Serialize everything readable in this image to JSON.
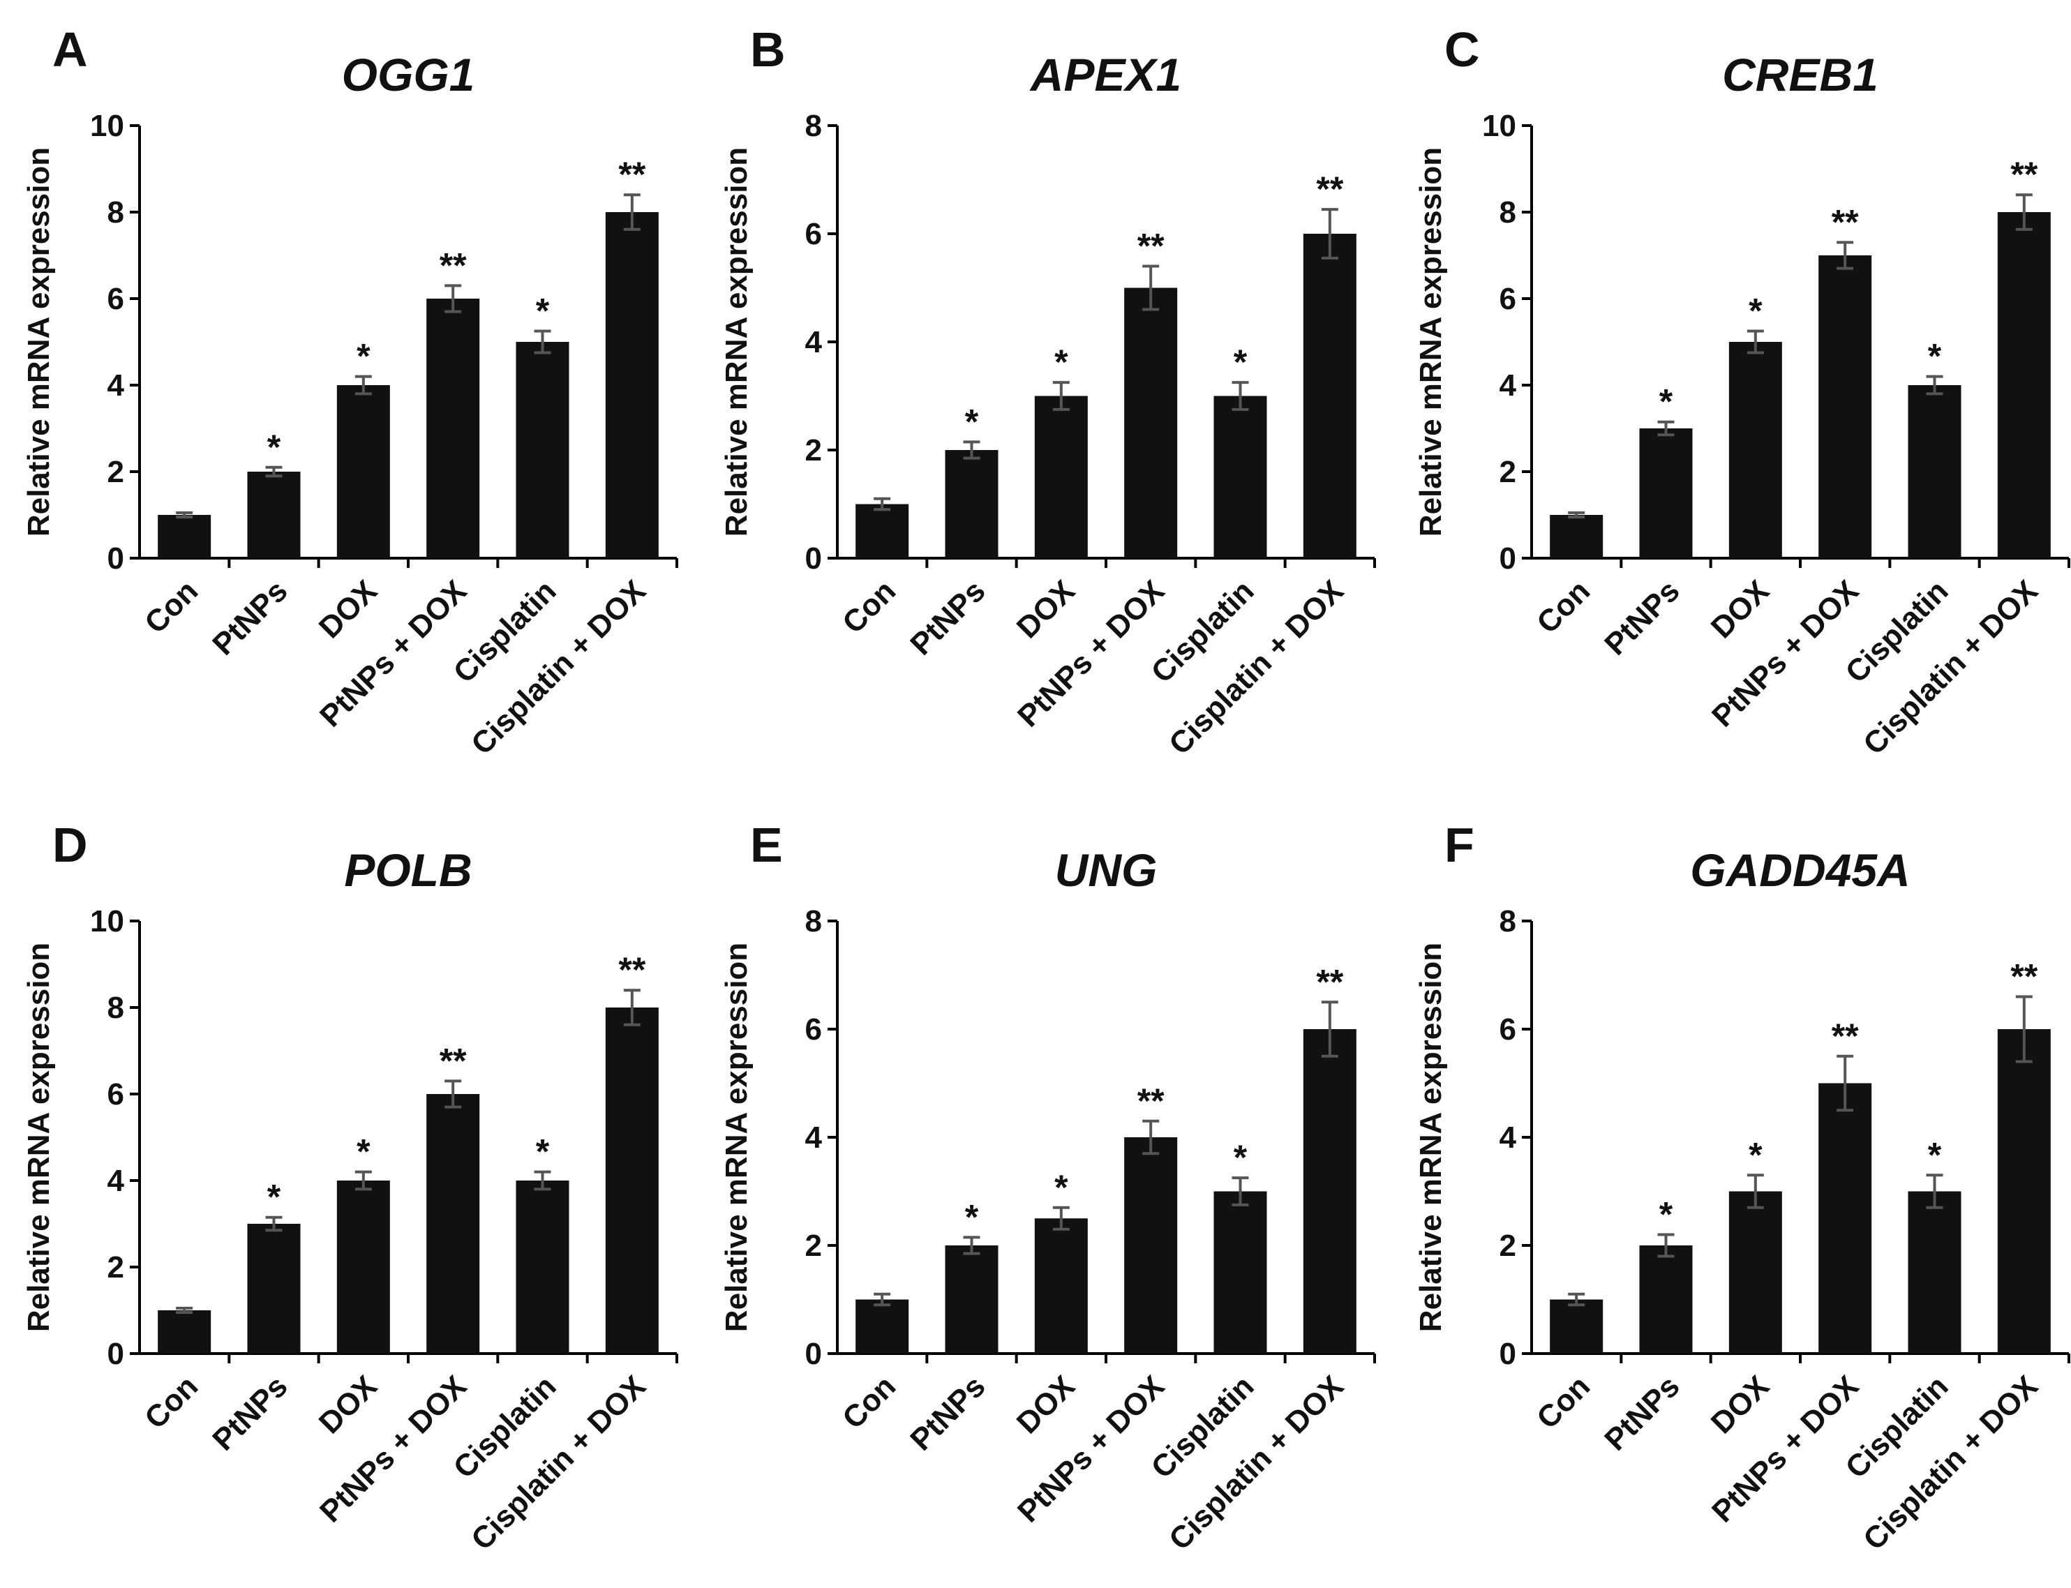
{
  "chart_data": [
    {
      "type": "bar",
      "panel": "A",
      "title": "OGG1",
      "ylabel": "Relative mRNA expression",
      "ylim": [
        0,
        10
      ],
      "yticks": [
        0,
        2,
        4,
        6,
        8,
        10
      ],
      "categories": [
        "Con",
        "PtNPs",
        "DOX",
        "PtNPs + DOX",
        "Cisplatin",
        "Cisplatin + DOX"
      ],
      "values": [
        1,
        2,
        4,
        6,
        5,
        8
      ],
      "errors": [
        0.05,
        0.1,
        0.2,
        0.3,
        0.25,
        0.4
      ],
      "significance": [
        "",
        "*",
        "*",
        "**",
        "*",
        "**"
      ],
      "bar_color": "#111111"
    },
    {
      "type": "bar",
      "panel": "B",
      "title": "APEX1",
      "ylabel": "Relative mRNA expression",
      "ylim": [
        0,
        8
      ],
      "yticks": [
        0,
        2,
        4,
        6,
        8
      ],
      "categories": [
        "Con",
        "PtNPs",
        "DOX",
        "PtNPs + DOX",
        "Cisplatin",
        "Cisplatin + DOX"
      ],
      "values": [
        1,
        2,
        3,
        5,
        3,
        6
      ],
      "errors": [
        0.1,
        0.15,
        0.25,
        0.4,
        0.25,
        0.45
      ],
      "significance": [
        "",
        "*",
        "*",
        "**",
        "*",
        "**"
      ],
      "bar_color": "#111111"
    },
    {
      "type": "bar",
      "panel": "C",
      "title": "CREB1",
      "ylabel": "Relative mRNA expression",
      "ylim": [
        0,
        10
      ],
      "yticks": [
        0,
        2,
        4,
        6,
        8,
        10
      ],
      "categories": [
        "Con",
        "PtNPs",
        "DOX",
        "PtNPs + DOX",
        "Cisplatin",
        "Cisplatin + DOX"
      ],
      "values": [
        1,
        3,
        5,
        7,
        4,
        8
      ],
      "errors": [
        0.05,
        0.15,
        0.25,
        0.3,
        0.2,
        0.4
      ],
      "significance": [
        "",
        "*",
        "*",
        "**",
        "*",
        "**"
      ],
      "bar_color": "#111111"
    },
    {
      "type": "bar",
      "panel": "D",
      "title": "POLB",
      "ylabel": "Relative mRNA expression",
      "ylim": [
        0,
        10
      ],
      "yticks": [
        0,
        2,
        4,
        6,
        8,
        10
      ],
      "categories": [
        "Con",
        "PtNPs",
        "DOX",
        "PtNPs + DOX",
        "Cisplatin",
        "Cisplatin + DOX"
      ],
      "values": [
        1,
        3,
        4,
        6,
        4,
        8
      ],
      "errors": [
        0.05,
        0.15,
        0.2,
        0.3,
        0.2,
        0.4
      ],
      "significance": [
        "",
        "*",
        "*",
        "**",
        "*",
        "**"
      ],
      "bar_color": "#111111"
    },
    {
      "type": "bar",
      "panel": "E",
      "title": "UNG",
      "ylabel": "Relative mRNA expression",
      "ylim": [
        0,
        8
      ],
      "yticks": [
        0,
        2,
        4,
        6,
        8
      ],
      "categories": [
        "Con",
        "PtNPs",
        "DOX",
        "PtNPs + DOX",
        "Cisplatin",
        "Cisplatin + DOX"
      ],
      "values": [
        1,
        2,
        2.5,
        4,
        3,
        6
      ],
      "errors": [
        0.1,
        0.15,
        0.2,
        0.3,
        0.25,
        0.5
      ],
      "significance": [
        "",
        "*",
        "*",
        "**",
        "*",
        "**"
      ],
      "bar_color": "#111111"
    },
    {
      "type": "bar",
      "panel": "F",
      "title": "GADD45A",
      "ylabel": "Relative mRNA expression",
      "ylim": [
        0,
        8
      ],
      "yticks": [
        0,
        2,
        4,
        6,
        8
      ],
      "categories": [
        "Con",
        "PtNPs",
        "DOX",
        "PtNPs + DOX",
        "Cisplatin",
        "Cisplatin + DOX"
      ],
      "values": [
        1,
        2,
        3,
        5,
        3,
        6
      ],
      "errors": [
        0.1,
        0.2,
        0.3,
        0.5,
        0.3,
        0.6
      ],
      "significance": [
        "",
        "*",
        "*",
        "**",
        "*",
        "**"
      ],
      "bar_color": "#111111"
    }
  ]
}
